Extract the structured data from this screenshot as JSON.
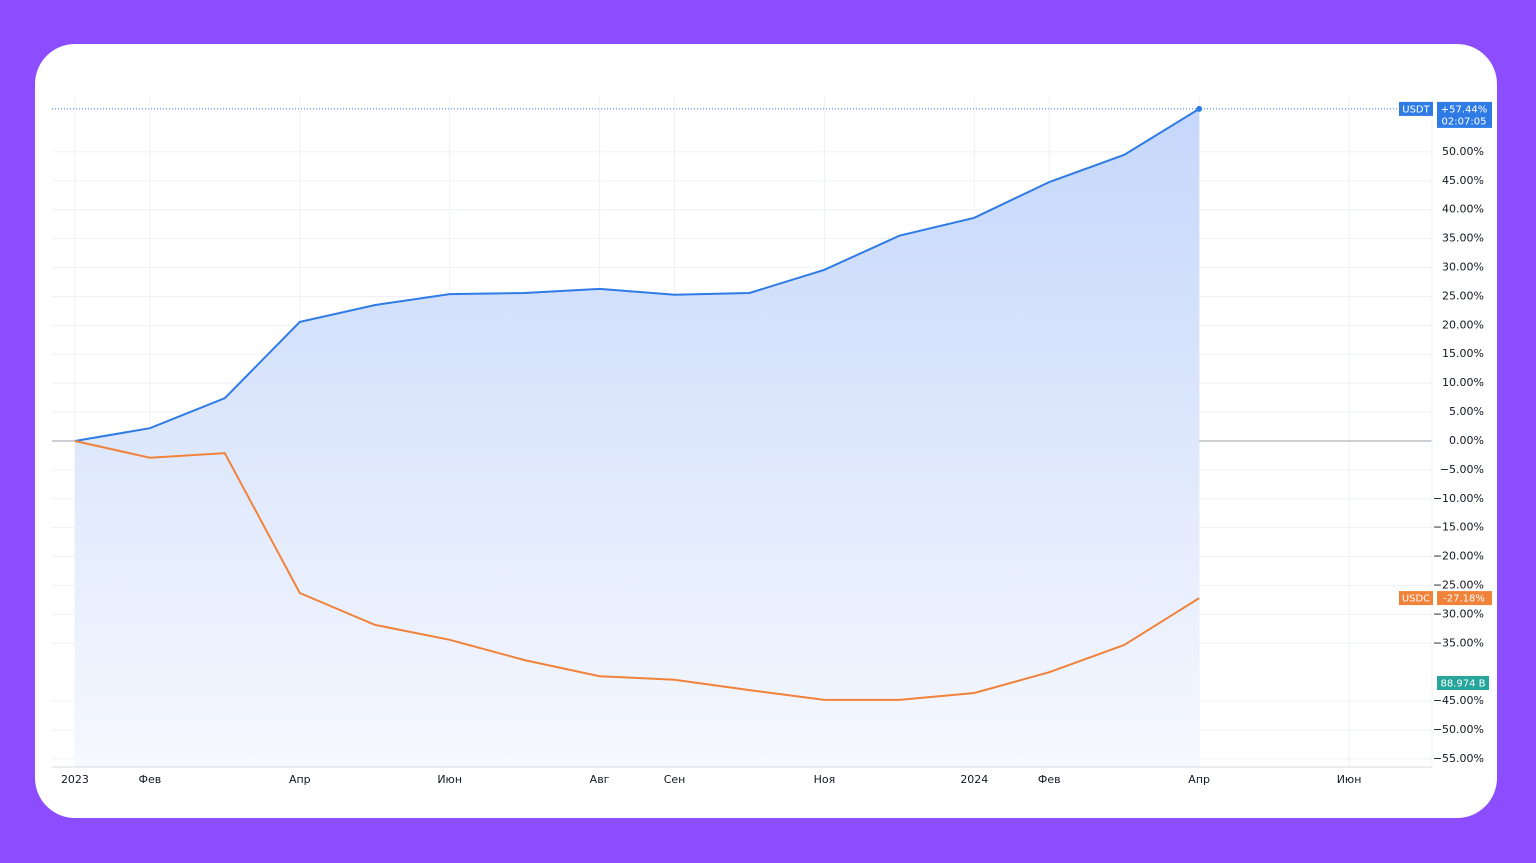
{
  "chart_data": {
    "type": "line",
    "x": [
      "2023-01",
      "2023-02",
      "2023-03",
      "2023-04",
      "2023-05",
      "2023-06",
      "2023-07",
      "2023-08",
      "2023-09",
      "2023-10",
      "2023-11",
      "2023-12",
      "2024-01",
      "2024-02",
      "2024-03",
      "2024-04"
    ],
    "series": [
      {
        "name": "USDT",
        "color": "#2e7be6",
        "values": [
          0,
          2.2,
          7.4,
          20.6,
          23.5,
          25.4,
          25.6,
          26.3,
          25.3,
          25.6,
          29.6,
          35.5,
          38.6,
          44.8,
          49.5,
          57.44
        ],
        "last_value_label": "+57.44%",
        "timer": "02:07:05",
        "area": true
      },
      {
        "name": "USDC",
        "color": "#f0823a",
        "values": [
          0,
          -2.9,
          -2.1,
          -26.3,
          -31.8,
          -34.4,
          -37.9,
          -40.7,
          -41.3,
          -43.1,
          -44.8,
          -44.8,
          -43.6,
          -40,
          -35.3,
          -27.18
        ],
        "last_value_label": "-27.18%"
      }
    ],
    "volume_label": "88.974 B",
    "xlim": [
      "2022-12",
      "2024-07"
    ],
    "xticks": [
      {
        "value": "2023-01",
        "label": "2023"
      },
      {
        "value": "2023-02",
        "label": "Фев"
      },
      {
        "value": "2023-04",
        "label": "Апр"
      },
      {
        "value": "2023-06",
        "label": "Июн"
      },
      {
        "value": "2023-08",
        "label": "Авг"
      },
      {
        "value": "2023-09",
        "label": "Сен"
      },
      {
        "value": "2023-11",
        "label": "Ноя"
      },
      {
        "value": "2024-01",
        "label": "2024"
      },
      {
        "value": "2024-02",
        "label": "Фев"
      },
      {
        "value": "2024-04",
        "label": "Апр"
      },
      {
        "value": "2024-06",
        "label": "Июн"
      }
    ],
    "ylim": [
      -56.4,
      59.5
    ],
    "yticks": [
      {
        "value": -55,
        "label": "−55.00%"
      },
      {
        "value": -50,
        "label": "−50.00%"
      },
      {
        "value": -45,
        "label": "−45.00%"
      },
      {
        "value": -35,
        "label": "−35.00%"
      },
      {
        "value": -30,
        "label": "−30.00%"
      },
      {
        "value": -25,
        "label": "−25.00%"
      },
      {
        "value": -20,
        "label": "−20.00%"
      },
      {
        "value": -15,
        "label": "−15.00%"
      },
      {
        "value": -10,
        "label": "−10.00%"
      },
      {
        "value": -5,
        "label": "−5.00%"
      },
      {
        "value": 0,
        "label": "0.00%"
      },
      {
        "value": 5,
        "label": "5.00%"
      },
      {
        "value": 10,
        "label": "10.00%"
      },
      {
        "value": 15,
        "label": "15.00%"
      },
      {
        "value": 20,
        "label": "20.00%"
      },
      {
        "value": 25,
        "label": "25.00%"
      },
      {
        "value": 30,
        "label": "30.00%"
      },
      {
        "value": 35,
        "label": "35.00%"
      },
      {
        "value": 40,
        "label": "40.00%"
      },
      {
        "value": 45,
        "label": "45.00%"
      },
      {
        "value": 50,
        "label": "50.00%"
      }
    ],
    "grid": true
  }
}
